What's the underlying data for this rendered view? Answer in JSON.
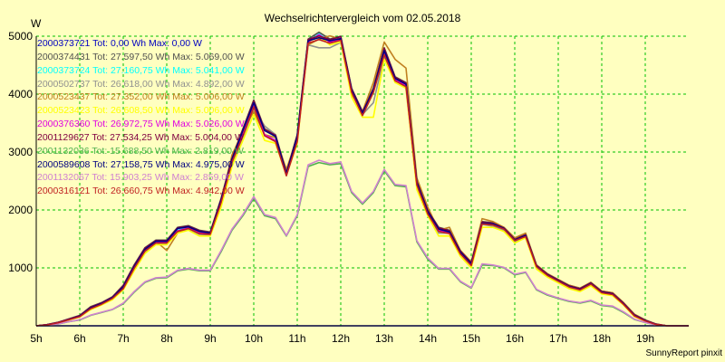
{
  "chart_data": {
    "type": "line",
    "title": "Wechselrichtervergleich vom 02.05.2018",
    "ylabel": "W",
    "footer": "SunnyReport pinxit",
    "xlim": [
      5,
      20
    ],
    "ylim": [
      0,
      5000
    ],
    "x_ticks": [
      "5h",
      "6h",
      "7h",
      "8h",
      "9h",
      "10h",
      "11h",
      "12h",
      "13h",
      "14h",
      "15h",
      "16h",
      "17h",
      "18h",
      "19h"
    ],
    "y_ticks": [
      "1000",
      "2000",
      "3000",
      "4000",
      "5000"
    ],
    "grid": true,
    "legend_position": "top-left",
    "x": [
      5,
      5.25,
      5.5,
      5.75,
      6,
      6.25,
      6.5,
      6.75,
      7,
      7.25,
      7.5,
      7.75,
      8,
      8.25,
      8.5,
      8.75,
      9,
      9.25,
      9.5,
      9.75,
      10,
      10.25,
      10.5,
      10.75,
      11,
      11.25,
      11.5,
      11.75,
      12,
      12.25,
      12.5,
      12.75,
      13,
      13.25,
      13.5,
      13.75,
      14,
      14.25,
      14.5,
      14.75,
      15,
      15.25,
      15.5,
      15.75,
      16,
      16.25,
      16.5,
      16.75,
      17,
      17.25,
      17.5,
      17.75,
      18,
      18.25,
      18.5,
      18.75,
      19,
      19.25,
      19.5,
      19.75,
      20
    ],
    "series": [
      {
        "name": "2000373721 Tot: 0,00 Wh Max: 0,00 W",
        "color": "#0000c0",
        "values": [
          0,
          0,
          0,
          0,
          0,
          0,
          0,
          0,
          0,
          0,
          0,
          0,
          0,
          0,
          0,
          0,
          0,
          0,
          0,
          0,
          0,
          0,
          0,
          0,
          0,
          0,
          0,
          0,
          0,
          0,
          0,
          0,
          0,
          0,
          0,
          0,
          0,
          0,
          0,
          0,
          0,
          0,
          0,
          0,
          0,
          0,
          0,
          0,
          0,
          0,
          0,
          0,
          0,
          0,
          0,
          0,
          0,
          0,
          0,
          0,
          0
        ]
      },
      {
        "name": "2000374431 Tot: 27.597,50 Wh Max: 5.069,00 W",
        "color": "#505050",
        "values": [
          0,
          20,
          60,
          120,
          180,
          330,
          400,
          500,
          700,
          1050,
          1350,
          1480,
          1480,
          1700,
          1730,
          1650,
          1620,
          2200,
          2900,
          3400,
          3900,
          3400,
          3300,
          2650,
          3300,
          4950,
          5069,
          4950,
          5000,
          4100,
          3700,
          4100,
          4800,
          4300,
          4200,
          2500,
          2000,
          1700,
          1650,
          1300,
          1100,
          1800,
          1780,
          1700,
          1500,
          1580,
          1050,
          900,
          800,
          700,
          650,
          750,
          600,
          570,
          400,
          200,
          100,
          30,
          0,
          0,
          0
        ]
      },
      {
        "name": "2000373724 Tot: 27.160,75 Wh Max: 5.041,00 W",
        "color": "#00ffff",
        "values": [
          0,
          15,
          55,
          110,
          160,
          300,
          380,
          480,
          650,
          1000,
          1300,
          1450,
          1450,
          1650,
          1700,
          1600,
          1600,
          2150,
          2850,
          3300,
          3800,
          3300,
          3200,
          2600,
          3200,
          4900,
          5041,
          4900,
          4950,
          4050,
          3650,
          4050,
          4700,
          4250,
          4150,
          2450,
          1950,
          1650,
          1600,
          1250,
          1050,
          1780,
          1750,
          1680,
          1480,
          1550,
          1030,
          880,
          780,
          680,
          630,
          730,
          580,
          550,
          380,
          180,
          90,
          25,
          0,
          0,
          0
        ]
      },
      {
        "name": "2000502737 Tot: 26.618,00 Wh Max: 4.892,00 W",
        "color": "#909090",
        "values": [
          0,
          15,
          50,
          105,
          155,
          290,
          370,
          460,
          630,
          980,
          1280,
          1420,
          1420,
          1620,
          1660,
          1580,
          1570,
          2100,
          2800,
          3250,
          3750,
          3450,
          3300,
          2600,
          3200,
          4850,
          4800,
          4800,
          4892,
          4050,
          3650,
          3850,
          4650,
          4250,
          4100,
          2400,
          1950,
          1600,
          1600,
          1250,
          1050,
          1750,
          1720,
          1650,
          1450,
          1550,
          1000,
          850,
          750,
          650,
          600,
          700,
          560,
          530,
          370,
          170,
          80,
          20,
          0,
          0,
          0
        ]
      },
      {
        "name": "2000523437 Tot: 27.352,00 Wh Max: 5.006,00 W",
        "color": "#c08020",
        "values": [
          0,
          20,
          55,
          115,
          170,
          320,
          390,
          490,
          680,
          1030,
          1330,
          1460,
          1300,
          1600,
          1700,
          1620,
          1580,
          2150,
          2950,
          3350,
          3700,
          3300,
          3250,
          2700,
          3250,
          4850,
          4950,
          5006,
          4950,
          4000,
          3700,
          4200,
          4900,
          4600,
          4450,
          2550,
          2050,
          1650,
          1700,
          1300,
          1100,
          1850,
          1800,
          1700,
          1520,
          1600,
          1050,
          900,
          800,
          700,
          650,
          750,
          600,
          570,
          400,
          200,
          100,
          30,
          0,
          0,
          0
        ]
      },
      {
        "name": "2000523423 Tot: 26.608,50 Wh Max: 5.006,00 W",
        "color": "#ffff00",
        "values": [
          0,
          15,
          50,
          100,
          150,
          280,
          360,
          450,
          620,
          950,
          1250,
          1400,
          1400,
          1600,
          1650,
          1550,
          1550,
          2050,
          2750,
          3200,
          3650,
          3200,
          3150,
          2600,
          3150,
          4900,
          5006,
          4850,
          4900,
          3950,
          3600,
          3600,
          4600,
          4200,
          4100,
          2350,
          1900,
          1550,
          1550,
          1200,
          1000,
          1700,
          1700,
          1630,
          1430,
          1520,
          980,
          840,
          740,
          640,
          590,
          690,
          550,
          520,
          360,
          160,
          80,
          20,
          0,
          0,
          0
        ]
      },
      {
        "name": "2000376360 Tot: 26.972,75 Wh Max: 5.026,00 W",
        "color": "#e000e0",
        "values": [
          0,
          18,
          55,
          110,
          160,
          300,
          380,
          480,
          650,
          1000,
          1300,
          1440,
          1440,
          1640,
          1690,
          1600,
          1590,
          2150,
          2850,
          3300,
          3800,
          3300,
          3200,
          2600,
          3200,
          4900,
          5026,
          4900,
          4950,
          4050,
          3650,
          4050,
          4700,
          4250,
          4150,
          2450,
          1950,
          1650,
          1600,
          1250,
          1050,
          1780,
          1750,
          1680,
          1480,
          1550,
          1030,
          880,
          780,
          680,
          630,
          730,
          580,
          550,
          380,
          180,
          90,
          25,
          0,
          0,
          0
        ]
      },
      {
        "name": "2001129627 Tot: 27.534,25 Wh Max: 5.004,00 W",
        "color": "#800040",
        "values": [
          0,
          20,
          60,
          115,
          175,
          320,
          395,
          495,
          690,
          1040,
          1340,
          1470,
          1470,
          1690,
          1720,
          1640,
          1610,
          2190,
          2890,
          3390,
          3880,
          3390,
          3290,
          2640,
          3290,
          4940,
          5004,
          4940,
          4990,
          4090,
          3690,
          4090,
          4790,
          4290,
          4190,
          2490,
          1990,
          1690,
          1640,
          1290,
          1090,
          1790,
          1770,
          1690,
          1490,
          1570,
          1040,
          890,
          790,
          690,
          640,
          740,
          590,
          560,
          390,
          190,
          95,
          28,
          0,
          0,
          0
        ]
      },
      {
        "name": "2001132036 Tot: 15.688,50 Wh Max: 2.819,00 W",
        "color": "#50b050",
        "values": [
          0,
          10,
          30,
          70,
          100,
          180,
          230,
          280,
          380,
          580,
          750,
          820,
          830,
          950,
          980,
          950,
          950,
          1280,
          1650,
          1900,
          2200,
          1900,
          1850,
          1550,
          1900,
          2750,
          2819,
          2780,
          2800,
          2300,
          2100,
          2300,
          2680,
          2420,
          2400,
          1450,
          1150,
          980,
          980,
          760,
          650,
          1050,
          1040,
          1000,
          880,
          920,
          620,
          530,
          470,
          420,
          390,
          430,
          350,
          330,
          230,
          110,
          55,
          15,
          0,
          0,
          0
        ]
      },
      {
        "name": "2000589608 Tot: 27.158,75 Wh Max: 4.975,00 W",
        "color": "#000080",
        "values": [
          0,
          18,
          55,
          110,
          165,
          310,
          385,
          485,
          670,
          1020,
          1320,
          1460,
          1460,
          1680,
          1710,
          1630,
          1600,
          2170,
          2870,
          3370,
          3850,
          3370,
          3270,
          2620,
          3270,
          4920,
          4975,
          4920,
          4960,
          4070,
          3670,
          4070,
          4750,
          4270,
          4170,
          2470,
          1970,
          1670,
          1620,
          1270,
          1070,
          1770,
          1760,
          1680,
          1480,
          1560,
          1030,
          880,
          780,
          680,
          630,
          730,
          580,
          550,
          380,
          180,
          90,
          25,
          0,
          0,
          0
        ]
      },
      {
        "name": "2001132067 Tot: 15.903,25 Wh Max: 2.859,00 W",
        "color": "#d080d0",
        "values": [
          0,
          10,
          32,
          72,
          105,
          185,
          235,
          285,
          390,
          590,
          760,
          830,
          840,
          960,
          990,
          960,
          960,
          1300,
          1670,
          1920,
          2230,
          1920,
          1870,
          1560,
          1920,
          2780,
          2859,
          2800,
          2830,
          2320,
          2120,
          2320,
          2700,
          2440,
          2420,
          1470,
          1170,
          990,
          990,
          770,
          660,
          1070,
          1050,
          1010,
          890,
          930,
          630,
          540,
          480,
          430,
          400,
          440,
          360,
          340,
          240,
          115,
          58,
          16,
          0,
          0,
          0
        ]
      },
      {
        "name": "2000316121 Tot: 26.660,75 Wh Max: 4.942,00 W",
        "color": "#c02020",
        "values": [
          0,
          16,
          52,
          105,
          158,
          295,
          372,
          472,
          640,
          990,
          1290,
          1430,
          1430,
          1630,
          1680,
          1590,
          1580,
          2130,
          2830,
          3280,
          3780,
          3280,
          3180,
          2590,
          3180,
          4880,
          4942,
          4880,
          4930,
          4030,
          3630,
          4030,
          4680,
          4230,
          4130,
          2430,
          1930,
          1630,
          1590,
          1240,
          1040,
          1760,
          1740,
          1670,
          1470,
          1540,
          1020,
          870,
          770,
          670,
          620,
          720,
          570,
          540,
          370,
          170,
          85,
          22,
          0,
          0,
          0
        ]
      }
    ]
  }
}
